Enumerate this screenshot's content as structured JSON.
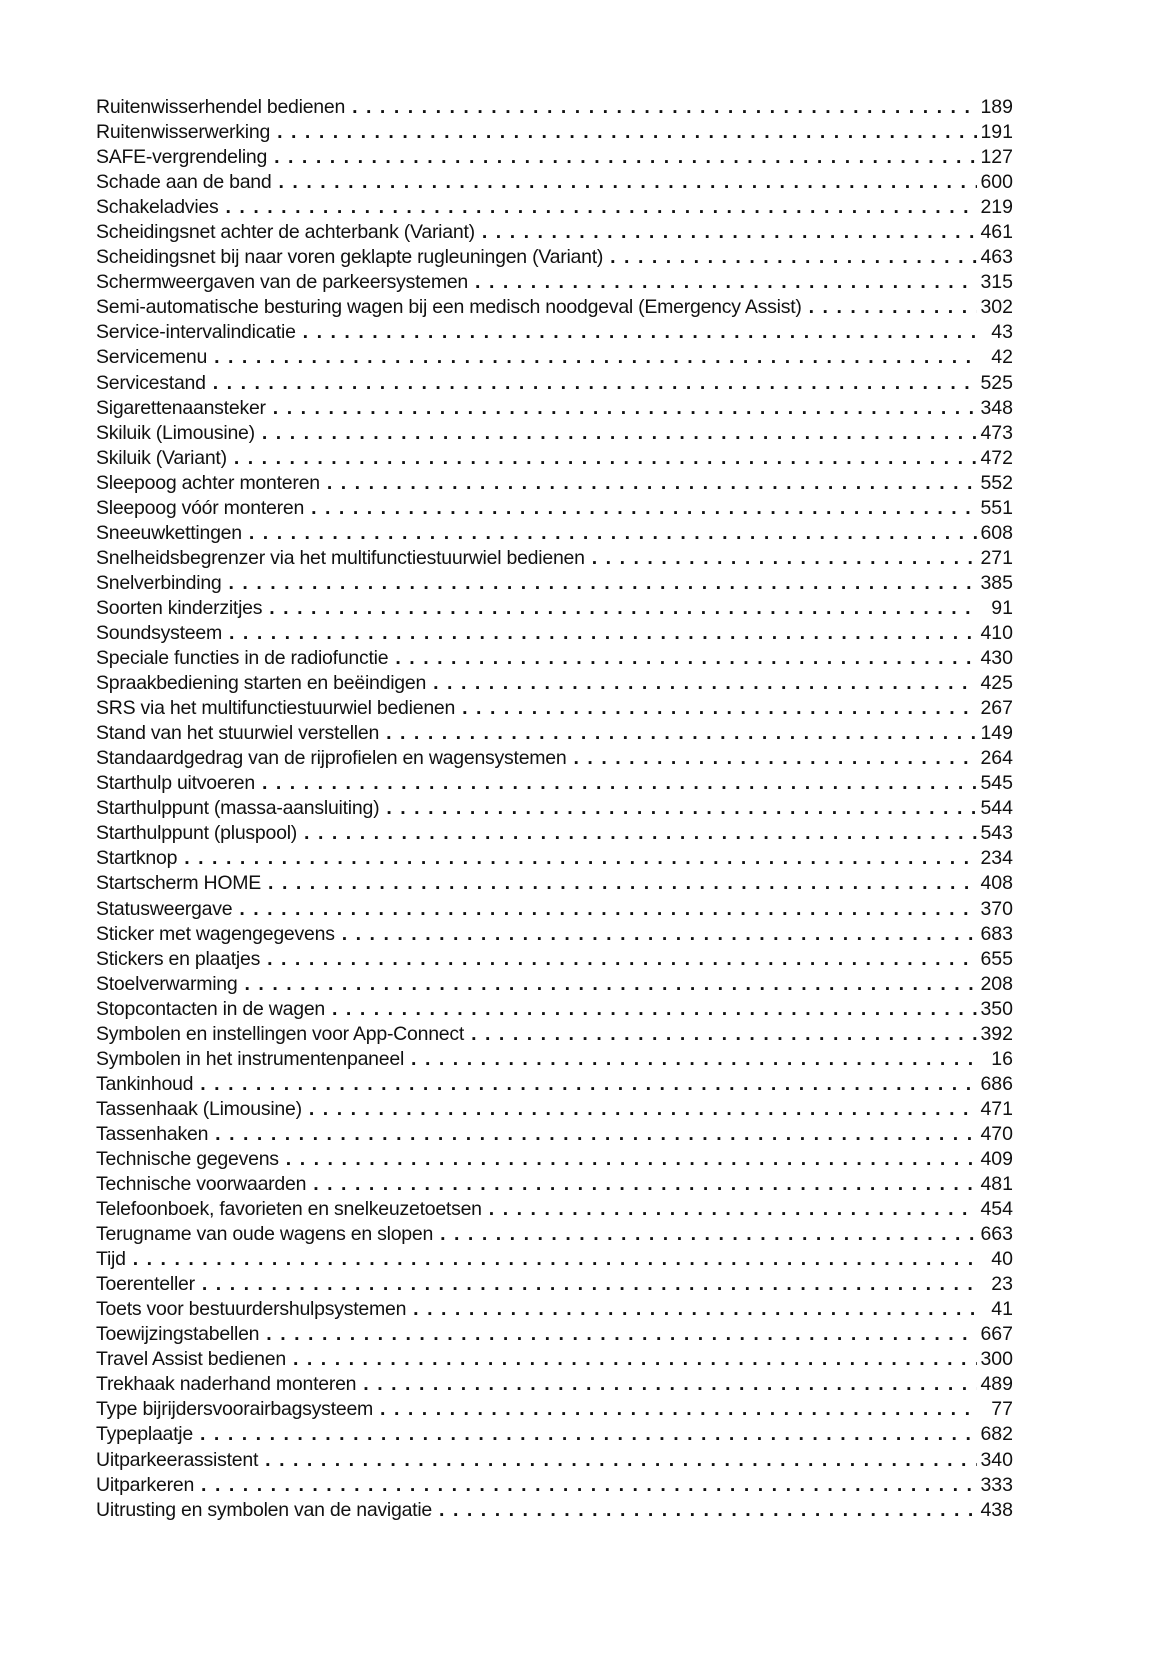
{
  "document": {
    "kind": "index-page",
    "language": "nl",
    "text_color": "#111111",
    "background_color": "#ffffff"
  },
  "index": {
    "entries": [
      {
        "label": "Ruitenwisserhendel bedienen",
        "page": "189"
      },
      {
        "label": "Ruitenwisserwerking",
        "page": "191"
      },
      {
        "label": "SAFE-vergrendeling",
        "page": "127"
      },
      {
        "label": "Schade aan de band",
        "page": "600"
      },
      {
        "label": "Schakeladvies",
        "page": "219"
      },
      {
        "label": "Scheidingsnet achter de achterbank (Variant)",
        "page": "461"
      },
      {
        "label": "Scheidingsnet bij naar voren geklapte rugleuningen (Variant)",
        "page": "463"
      },
      {
        "label": "Schermweergaven van de parkeersystemen",
        "page": "315"
      },
      {
        "label": "Semi-automatische besturing wagen bij een medisch noodgeval (Emergency Assist)",
        "page": "302"
      },
      {
        "label": "Service-intervalindicatie",
        "page": "43"
      },
      {
        "label": "Servicemenu",
        "page": "42"
      },
      {
        "label": "Servicestand",
        "page": "525"
      },
      {
        "label": "Sigarettenaansteker",
        "page": "348"
      },
      {
        "label": "Skiluik (Limousine)",
        "page": "473"
      },
      {
        "label": "Skiluik (Variant)",
        "page": "472"
      },
      {
        "label": "Sleepoog achter monteren",
        "page": "552"
      },
      {
        "label": "Sleepoog vóór monteren",
        "page": "551"
      },
      {
        "label": "Sneeuwkettingen",
        "page": "608"
      },
      {
        "label": "Snelheidsbegrenzer via het multifunctiestuurwiel bedienen",
        "page": "271"
      },
      {
        "label": "Snelverbinding",
        "page": "385"
      },
      {
        "label": "Soorten kinderzitjes",
        "page": "91"
      },
      {
        "label": "Soundsysteem",
        "page": "410"
      },
      {
        "label": "Speciale functies in de radiofunctie",
        "page": "430"
      },
      {
        "label": "Spraakbediening starten en beëindigen",
        "page": "425"
      },
      {
        "label": "SRS via het multifunctiestuurwiel bedienen",
        "page": "267"
      },
      {
        "label": "Stand van het stuurwiel verstellen",
        "page": "149"
      },
      {
        "label": "Standaardgedrag van de rijprofielen en wagensystemen",
        "page": "264"
      },
      {
        "label": "Starthulp uitvoeren",
        "page": "545"
      },
      {
        "label": "Starthulppunt (massa-aansluiting)",
        "page": "544"
      },
      {
        "label": "Starthulppunt (pluspool)",
        "page": "543"
      },
      {
        "label": "Startknop",
        "page": "234"
      },
      {
        "label": "Startscherm HOME",
        "page": "408"
      },
      {
        "label": "Statusweergave",
        "page": "370"
      },
      {
        "label": "Sticker met wagengegevens",
        "page": "683"
      },
      {
        "label": "Stickers en plaatjes",
        "page": "655"
      },
      {
        "label": "Stoelverwarming",
        "page": "208"
      },
      {
        "label": "Stopcontacten in de wagen",
        "page": "350"
      },
      {
        "label": "Symbolen en instellingen voor App-Connect",
        "page": "392"
      },
      {
        "label": "Symbolen in het instrumentenpaneel",
        "page": "16"
      },
      {
        "label": "Tankinhoud",
        "page": "686"
      },
      {
        "label": "Tassenhaak (Limousine)",
        "page": "471"
      },
      {
        "label": "Tassenhaken",
        "page": "470"
      },
      {
        "label": "Technische gegevens",
        "page": "409"
      },
      {
        "label": "Technische voorwaarden",
        "page": "481"
      },
      {
        "label": "Telefoonboek, favorieten en snelkeuzetoetsen",
        "page": "454"
      },
      {
        "label": "Terugname van oude wagens en slopen",
        "page": "663"
      },
      {
        "label": "Tijd",
        "page": "40"
      },
      {
        "label": "Toerenteller",
        "page": "23"
      },
      {
        "label": "Toets voor bestuurdershulpsystemen",
        "page": "41"
      },
      {
        "label": "Toewijzingstabellen",
        "page": "667"
      },
      {
        "label": "Travel Assist bedienen",
        "page": "300"
      },
      {
        "label": "Trekhaak naderhand monteren",
        "page": "489"
      },
      {
        "label": "Type bijrijdersvoorairbagsysteem",
        "page": "77"
      },
      {
        "label": "Typeplaatje",
        "page": "682"
      },
      {
        "label": "Uitparkeerassistent",
        "page": "340"
      },
      {
        "label": "Uitparkeren",
        "page": "333"
      },
      {
        "label": "Uitrusting en symbolen van de navigatie",
        "page": "438"
      }
    ]
  }
}
